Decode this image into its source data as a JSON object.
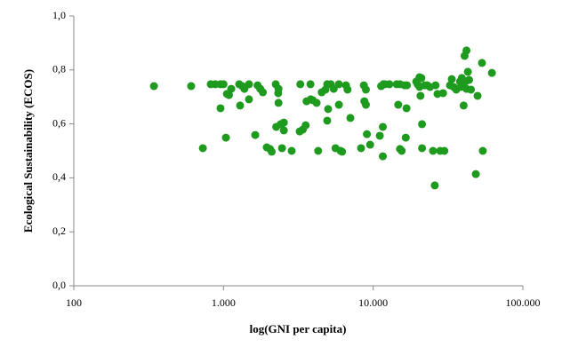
{
  "chart_data": {
    "type": "scatter",
    "x_label": "log(GNI per capita)",
    "y_label": "Ecological Sustainability  (ECOS)",
    "x_scale": "log",
    "color": "#1e9a1e",
    "xlim": [
      100,
      100000
    ],
    "xticks": [
      100,
      {
        "value": 1000,
        "label": "1.000"
      },
      {
        "value": 10000,
        "label": "10.000"
      },
      {
        "value": 100000,
        "label": "100.000"
      }
    ],
    "ylim": [
      0,
      1
    ],
    "yticks": [
      {
        "value": 0,
        "label": "0,0"
      },
      {
        "value": 0.2,
        "label": "0,2"
      },
      {
        "value": 0.4,
        "label": "0,4"
      },
      {
        "value": 0.6,
        "label": "0,6"
      },
      {
        "value": 0.8,
        "label": "0,8"
      },
      {
        "value": 1,
        "label": "1,0"
      }
    ],
    "x": [
      343,
      608,
      728,
      822,
      881,
      955,
      955,
      1000,
      1038,
      1054,
      1127,
      1087,
      1273,
      1291,
      1335,
      1380,
      1480,
      1480,
      1630,
      1689,
      1760,
      1832,
      1946,
      2045,
      2100,
      2233,
      2250,
      2320,
      2330,
      2330,
      2410,
      2460,
      2530,
      2530,
      2855,
      3230,
      3260,
      3390,
      3540,
      3590,
      3810,
      3830,
      3940,
      4190,
      4290,
      4530,
      4800,
      4930,
      4930,
      5000,
      5210,
      5450,
      5600,
      5900,
      5900,
      6060,
      6200,
      6580,
      6740,
      7040,
      8300,
      8660,
      8730,
      8940,
      8940,
      9080,
      9540,
      11070,
      11300,
      11600,
      11600,
      11700,
      12000,
      12840,
      14350,
      14700,
      15100,
      15100,
      15500,
      16200,
      16500,
      16700,
      16800,
      19400,
      19800,
      20400,
      20400,
      20700,
      21000,
      21200,
      21200,
      22100,
      23000,
      24000,
      25100,
      25800,
      26100,
      26900,
      28000,
      29300,
      29900,
      32600,
      33500,
      34500,
      35900,
      38000,
      38500,
      39100,
      39600,
      40200,
      40800,
      41400,
      42000,
      42000,
      42900,
      43700,
      45000,
      48500,
      49800,
      53300,
      54000,
      62100
    ],
    "values": [
      0.74,
      0.74,
      0.51,
      0.747,
      0.747,
      0.747,
      0.658,
      0.747,
      0.549,
      0.711,
      0.73,
      0.707,
      0.747,
      0.668,
      0.74,
      0.73,
      0.747,
      0.691,
      0.559,
      0.743,
      0.73,
      0.717,
      0.513,
      0.507,
      0.497,
      0.747,
      0.589,
      0.714,
      0.73,
      0.678,
      0.599,
      0.51,
      0.605,
      0.576,
      0.5,
      0.572,
      0.747,
      0.579,
      0.595,
      0.684,
      0.747,
      0.691,
      0.688,
      0.678,
      0.5,
      0.717,
      0.727,
      0.612,
      0.747,
      0.655,
      0.747,
      0.73,
      0.51,
      0.747,
      0.671,
      0.5,
      0.497,
      0.743,
      0.727,
      0.622,
      0.51,
      0.743,
      0.684,
      0.727,
      0.671,
      0.562,
      0.523,
      0.556,
      0.74,
      0.589,
      0.48,
      0.747,
      0.747,
      0.747,
      0.747,
      0.671,
      0.747,
      0.507,
      0.5,
      0.743,
      0.549,
      0.658,
      0.743,
      0.757,
      0.747,
      0.773,
      0.737,
      0.704,
      0.77,
      0.599,
      0.51,
      0.743,
      0.743,
      0.737,
      0.5,
      0.372,
      0.743,
      0.711,
      0.5,
      0.714,
      0.5,
      0.743,
      0.766,
      0.737,
      0.727,
      0.757,
      0.737,
      0.77,
      0.743,
      0.668,
      0.852,
      0.757,
      0.73,
      0.872,
      0.793,
      0.763,
      0.727,
      0.414,
      0.704,
      0.826,
      0.5,
      0.789
    ]
  }
}
